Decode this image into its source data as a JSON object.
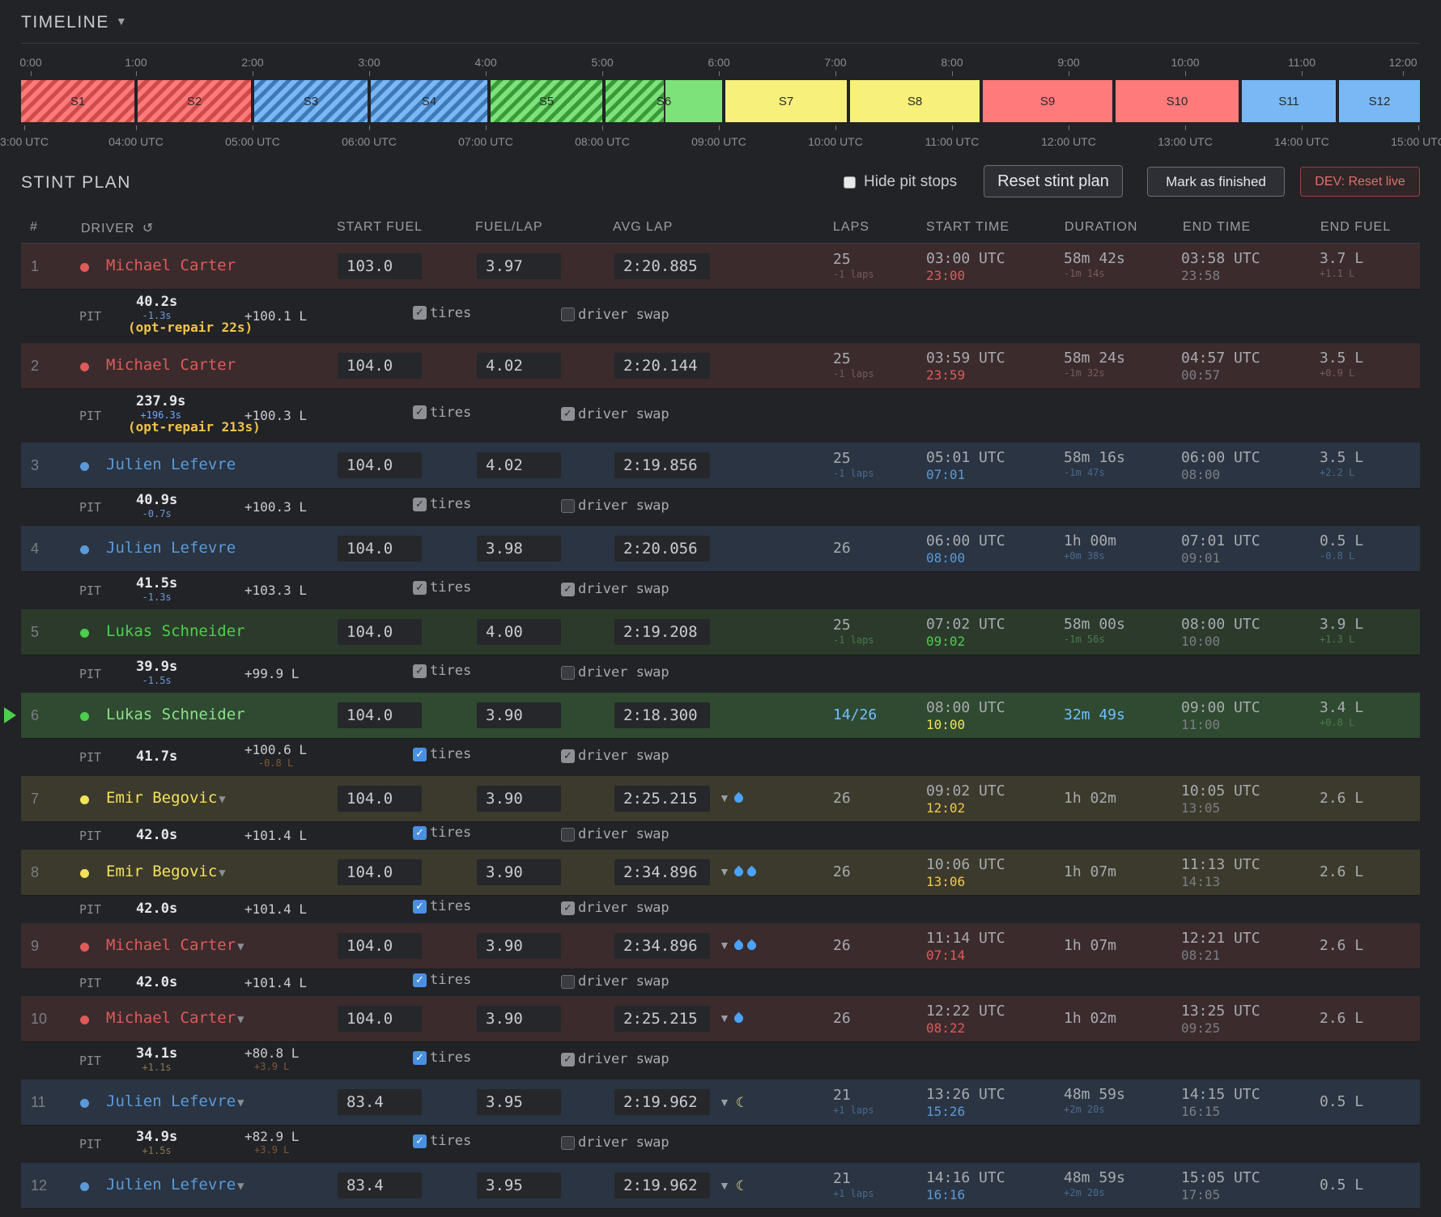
{
  "timeline": {
    "title": "TIMELINE",
    "caret": "▼",
    "top_ticks": [
      "0:00",
      "1:00",
      "2:00",
      "3:00",
      "4:00",
      "5:00",
      "6:00",
      "7:00",
      "8:00",
      "9:00",
      "10:00",
      "11:00",
      "12:00"
    ],
    "bottom_ticks": [
      "3:00 UTC",
      "04:00 UTC",
      "05:00 UTC",
      "06:00 UTC",
      "07:00 UTC",
      "08:00 UTC",
      "09:00 UTC",
      "10:00 UTC",
      "11:00 UTC",
      "12:00 UTC",
      "13:00 UTC",
      "14:00 UTC",
      "15:00 UTC"
    ],
    "stints": [
      "S1",
      "S2",
      "S3",
      "S4",
      "S5",
      "S6",
      "S7",
      "S8",
      "S9",
      "S10",
      "S11",
      "S12"
    ],
    "stint_colors": {
      "red": "#ff7a7a",
      "blue": "#7ab8f5",
      "green": "#7ee27a",
      "yellow": "#f7f07a"
    }
  },
  "stint_plan": {
    "title": "STINT PLAN",
    "hide_pit_stops_label": "Hide pit stops",
    "hide_pit_stops_checked": false,
    "reset_button": "Reset stint plan",
    "finish_button": "Mark as finished",
    "dev_button": "DEV: Reset live",
    "columns": {
      "num": "#",
      "driver": "DRIVER",
      "refresh_icon": "↺",
      "start_fuel": "START FUEL",
      "fuel_lap": "FUEL/LAP",
      "avg_lap": "AVG LAP",
      "laps": "LAPS",
      "start_time": "START TIME",
      "duration": "DURATION",
      "end_time": "END TIME",
      "end_fuel": "END FUEL"
    },
    "driver_colors": {
      "Michael Carter": "#e05a5a",
      "Julien Lefevre": "#5b9ad8",
      "Lukas Schneider": "#4ccf4c",
      "Emir Begovic": "#f3e35a"
    },
    "rows": [
      {
        "num": "1",
        "driver": "Michael Carter",
        "caret": "",
        "start_fuel": "103.0",
        "fuel_lap": "3.97",
        "avg_lap": "2:20.885",
        "weather": "",
        "laps": "25",
        "laps_sub": "-1 laps",
        "start": "03:00 UTC",
        "start_local": "23:00",
        "duration": "58m 42s",
        "duration_sub": "-1m 14s",
        "end": "03:58 UTC",
        "end_local": "23:58",
        "end_fuel": "3.7 L",
        "end_fuel_sub": "+1.1 L",
        "pit": {
          "label": "PIT",
          "time": "40.2s",
          "delta": "-1.3s",
          "fuel": "+100.1 L",
          "fuel_sub": "",
          "opt": "(opt-repair 22s)",
          "tires": "tires",
          "tires_checked": true,
          "swap": "driver swap",
          "swap_checked": false
        }
      },
      {
        "num": "2",
        "driver": "Michael Carter",
        "caret": "",
        "start_fuel": "104.0",
        "fuel_lap": "4.02",
        "avg_lap": "2:20.144",
        "weather": "",
        "laps": "25",
        "laps_sub": "-1 laps",
        "start": "03:59 UTC",
        "start_local": "23:59",
        "duration": "58m 24s",
        "duration_sub": "-1m 32s",
        "end": "04:57 UTC",
        "end_local": "00:57",
        "end_fuel": "3.5 L",
        "end_fuel_sub": "+0.9 L",
        "pit": {
          "label": "PIT",
          "time": "237.9s",
          "delta": "+196.3s",
          "fuel": "+100.3 L",
          "fuel_sub": "",
          "opt": "(opt-repair 213s)",
          "tires": "tires",
          "tires_checked": true,
          "swap": "driver swap",
          "swap_checked": true
        }
      },
      {
        "num": "3",
        "driver": "Julien Lefevre",
        "caret": "",
        "start_fuel": "104.0",
        "fuel_lap": "4.02",
        "avg_lap": "2:19.856",
        "weather": "",
        "laps": "25",
        "laps_sub": "-1 laps",
        "start": "05:01 UTC",
        "start_local": "07:01",
        "duration": "58m 16s",
        "duration_sub": "-1m 47s",
        "end": "06:00 UTC",
        "end_local": "08:00",
        "end_fuel": "3.5 L",
        "end_fuel_sub": "+2.2 L",
        "pit": {
          "label": "PIT",
          "time": "40.9s",
          "delta": "-0.7s",
          "fuel": "+100.3 L",
          "fuel_sub": "",
          "opt": "",
          "tires": "tires",
          "tires_checked": true,
          "swap": "driver swap",
          "swap_checked": false
        }
      },
      {
        "num": "4",
        "driver": "Julien Lefevre",
        "caret": "",
        "start_fuel": "104.0",
        "fuel_lap": "3.98",
        "avg_lap": "2:20.056",
        "weather": "",
        "laps": "26",
        "laps_sub": "",
        "start": "06:00 UTC",
        "start_local": "08:00",
        "duration": "1h 00m",
        "duration_sub": "+0m 38s",
        "end": "07:01 UTC",
        "end_local": "09:01",
        "end_fuel": "0.5 L",
        "end_fuel_sub": "-0.8 L",
        "pit": {
          "label": "PIT",
          "time": "41.5s",
          "delta": "-1.3s",
          "fuel": "+103.3 L",
          "fuel_sub": "",
          "opt": "",
          "tires": "tires",
          "tires_checked": true,
          "swap": "driver swap",
          "swap_checked": true
        }
      },
      {
        "num": "5",
        "driver": "Lukas Schneider",
        "caret": "",
        "start_fuel": "104.0",
        "fuel_lap": "4.00",
        "avg_lap": "2:19.208",
        "weather": "",
        "laps": "25",
        "laps_sub": "-1 laps",
        "start": "07:02 UTC",
        "start_local": "09:02",
        "duration": "58m 00s",
        "duration_sub": "-1m 56s",
        "end": "08:00 UTC",
        "end_local": "10:00",
        "end_fuel": "3.9 L",
        "end_fuel_sub": "+1.3 L",
        "pit": {
          "label": "PIT",
          "time": "39.9s",
          "delta": "-1.5s",
          "fuel": "+99.9 L",
          "fuel_sub": "",
          "opt": "",
          "tires": "tires",
          "tires_checked": true,
          "swap": "driver swap",
          "swap_checked": false
        }
      },
      {
        "num": "6",
        "driver": "Lukas Schneider",
        "caret": "",
        "start_fuel": "104.0",
        "fuel_lap": "3.90",
        "avg_lap": "2:18.300",
        "weather": "",
        "laps": "14/26",
        "laps_sub": "",
        "start": "08:00 UTC",
        "start_local": "10:00",
        "duration": "32m 49s",
        "duration_sub": "",
        "end": "09:00 UTC",
        "end_local": "11:00",
        "end_fuel": "3.4 L",
        "end_fuel_sub": "+0.8 L",
        "pit": {
          "label": "PIT",
          "time": "41.7s",
          "delta": "",
          "fuel": "+100.6 L",
          "fuel_sub": "-0.8 L",
          "opt": "",
          "tires": "tires",
          "tires_checked": true,
          "swap": "driver swap",
          "swap_checked": true
        }
      },
      {
        "num": "7",
        "driver": "Emir Begovic",
        "caret": "▼",
        "start_fuel": "104.0",
        "fuel_lap": "3.90",
        "avg_lap": "2:25.215",
        "weather": "drop1",
        "laps": "26",
        "laps_sub": "",
        "start": "09:02 UTC",
        "start_local": "12:02",
        "duration": "1h 02m",
        "duration_sub": "",
        "end": "10:05 UTC",
        "end_local": "13:05",
        "end_fuel": "2.6 L",
        "end_fuel_sub": "",
        "pit": {
          "label": "PIT",
          "time": "42.0s",
          "delta": "",
          "fuel": "+101.4 L",
          "fuel_sub": "",
          "opt": "",
          "tires": "tires",
          "tires_checked": true,
          "swap": "driver swap",
          "swap_checked": false
        }
      },
      {
        "num": "8",
        "driver": "Emir Begovic",
        "caret": "▼",
        "start_fuel": "104.0",
        "fuel_lap": "3.90",
        "avg_lap": "2:34.896",
        "weather": "drop2",
        "laps": "26",
        "laps_sub": "",
        "start": "10:06 UTC",
        "start_local": "13:06",
        "duration": "1h 07m",
        "duration_sub": "",
        "end": "11:13 UTC",
        "end_local": "14:13",
        "end_fuel": "2.6 L",
        "end_fuel_sub": "",
        "pit": {
          "label": "PIT",
          "time": "42.0s",
          "delta": "",
          "fuel": "+101.4 L",
          "fuel_sub": "",
          "opt": "",
          "tires": "tires",
          "tires_checked": true,
          "swap": "driver swap",
          "swap_checked": true
        }
      },
      {
        "num": "9",
        "driver": "Michael Carter",
        "caret": "▼",
        "start_fuel": "104.0",
        "fuel_lap": "3.90",
        "avg_lap": "2:34.896",
        "weather": "drop2",
        "laps": "26",
        "laps_sub": "",
        "start": "11:14 UTC",
        "start_local": "07:14",
        "duration": "1h 07m",
        "duration_sub": "",
        "end": "12:21 UTC",
        "end_local": "08:21",
        "end_fuel": "2.6 L",
        "end_fuel_sub": "",
        "pit": {
          "label": "PIT",
          "time": "42.0s",
          "delta": "",
          "fuel": "+101.4 L",
          "fuel_sub": "",
          "opt": "",
          "tires": "tires",
          "tires_checked": true,
          "swap": "driver swap",
          "swap_checked": false
        }
      },
      {
        "num": "10",
        "driver": "Michael Carter",
        "caret": "▼",
        "start_fuel": "104.0",
        "fuel_lap": "3.90",
        "avg_lap": "2:25.215",
        "weather": "drop1",
        "laps": "26",
        "laps_sub": "",
        "start": "12:22 UTC",
        "start_local": "08:22",
        "duration": "1h 02m",
        "duration_sub": "",
        "end": "13:25 UTC",
        "end_local": "09:25",
        "end_fuel": "2.6 L",
        "end_fuel_sub": "",
        "pit": {
          "label": "PIT",
          "time": "34.1s",
          "delta": "+1.1s",
          "fuel": "+80.8 L",
          "fuel_sub": "+3.9 L",
          "opt": "",
          "tires": "tires",
          "tires_checked": true,
          "swap": "driver swap",
          "swap_checked": true
        }
      },
      {
        "num": "11",
        "driver": "Julien Lefevre",
        "caret": "▼",
        "start_fuel": "83.4",
        "fuel_lap": "3.95",
        "avg_lap": "2:19.962",
        "weather": "moon",
        "laps": "21",
        "laps_sub": "+1 laps",
        "start": "13:26 UTC",
        "start_local": "15:26",
        "duration": "48m 59s",
        "duration_sub": "+2m 20s",
        "end": "14:15 UTC",
        "end_local": "16:15",
        "end_fuel": "0.5 L",
        "end_fuel_sub": "",
        "pit": {
          "label": "PIT",
          "time": "34.9s",
          "delta": "+1.5s",
          "fuel": "+82.9 L",
          "fuel_sub": "+3.9 L",
          "opt": "",
          "tires": "tires",
          "tires_checked": true,
          "swap": "driver swap",
          "swap_checked": false
        }
      },
      {
        "num": "12",
        "driver": "Julien Lefevre",
        "caret": "▼",
        "start_fuel": "83.4",
        "fuel_lap": "3.95",
        "avg_lap": "2:19.962",
        "weather": "moon",
        "laps": "21",
        "laps_sub": "+1 laps",
        "start": "14:16 UTC",
        "start_local": "16:16",
        "duration": "48m 59s",
        "duration_sub": "+2m 20s",
        "end": "15:05 UTC",
        "end_local": "17:05",
        "end_fuel": "0.5 L",
        "end_fuel_sub": ""
      }
    ]
  }
}
